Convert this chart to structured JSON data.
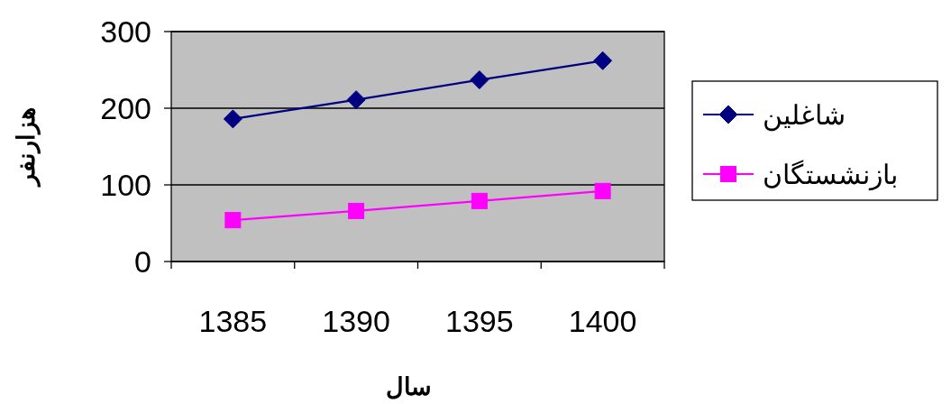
{
  "chart_data": {
    "type": "line",
    "xlabel": "سال",
    "ylabel": "هزارنفر",
    "categories": [
      "1385",
      "1390",
      "1395",
      "1400"
    ],
    "series": [
      {
        "name": "شاغلین",
        "color": "#000080",
        "marker": "diamond",
        "values": [
          186,
          211,
          237,
          262
        ]
      },
      {
        "name": "بازنشستگان",
        "color": "#ff00ff",
        "marker": "square",
        "values": [
          54,
          66,
          79,
          92
        ]
      }
    ],
    "ylim": [
      0,
      300
    ],
    "yticks": [
      0,
      100,
      200,
      300
    ],
    "grid": "y",
    "legend": "right"
  }
}
